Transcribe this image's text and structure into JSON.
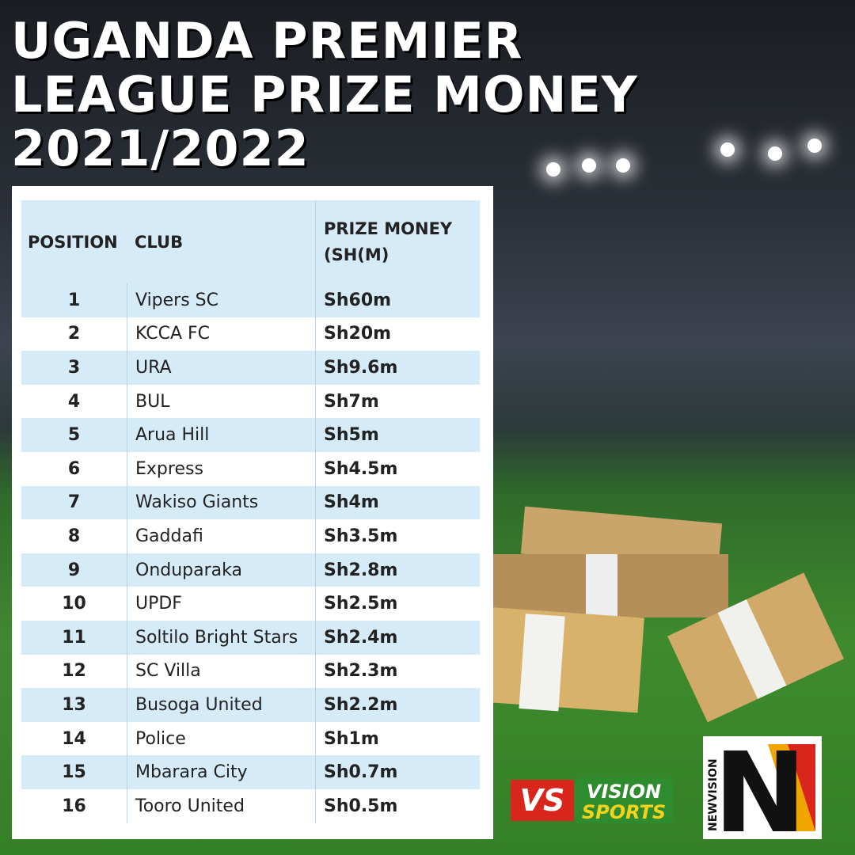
{
  "header": {
    "title_lines": [
      "UGANDA PREMIER",
      "LEAGUE PRIZE MONEY",
      "2021/2022"
    ]
  },
  "table": {
    "columns": [
      "POSITION",
      "CLUB",
      "PRIZE MONEY (SH(M)"
    ],
    "rows": [
      [
        "1",
        "Vipers SC",
        "Sh60m"
      ],
      [
        "2",
        "KCCA FC",
        "Sh20m"
      ],
      [
        "3",
        "URA",
        "Sh9.6m"
      ],
      [
        "4",
        "BUL",
        "Sh7m"
      ],
      [
        "5",
        "Arua Hill",
        "Sh5m"
      ],
      [
        "6",
        "Express",
        "Sh4.5m"
      ],
      [
        "7",
        "Wakiso Giants",
        "Sh4m"
      ],
      [
        "8",
        "Gaddafi",
        "Sh3.5m"
      ],
      [
        "9",
        "Onduparaka",
        "Sh2.8m"
      ],
      [
        "10",
        "UPDF",
        "Sh2.5m"
      ],
      [
        "11",
        "Soltilo Bright Stars",
        "Sh2.4m"
      ],
      [
        "12",
        "SC Villa",
        "Sh2.3m"
      ],
      [
        "13",
        "Busoga United",
        "Sh2.2m"
      ],
      [
        "14",
        "Police",
        "Sh1m"
      ],
      [
        "15",
        "Mbarara City",
        "Sh0.7m"
      ],
      [
        "16",
        "Tooro United",
        "Sh0.5m"
      ]
    ]
  },
  "logos": {
    "vs": "VS",
    "vision": "VISION",
    "sports": "SPORTS",
    "newvision": "NEWVISION",
    "n": "N"
  }
}
